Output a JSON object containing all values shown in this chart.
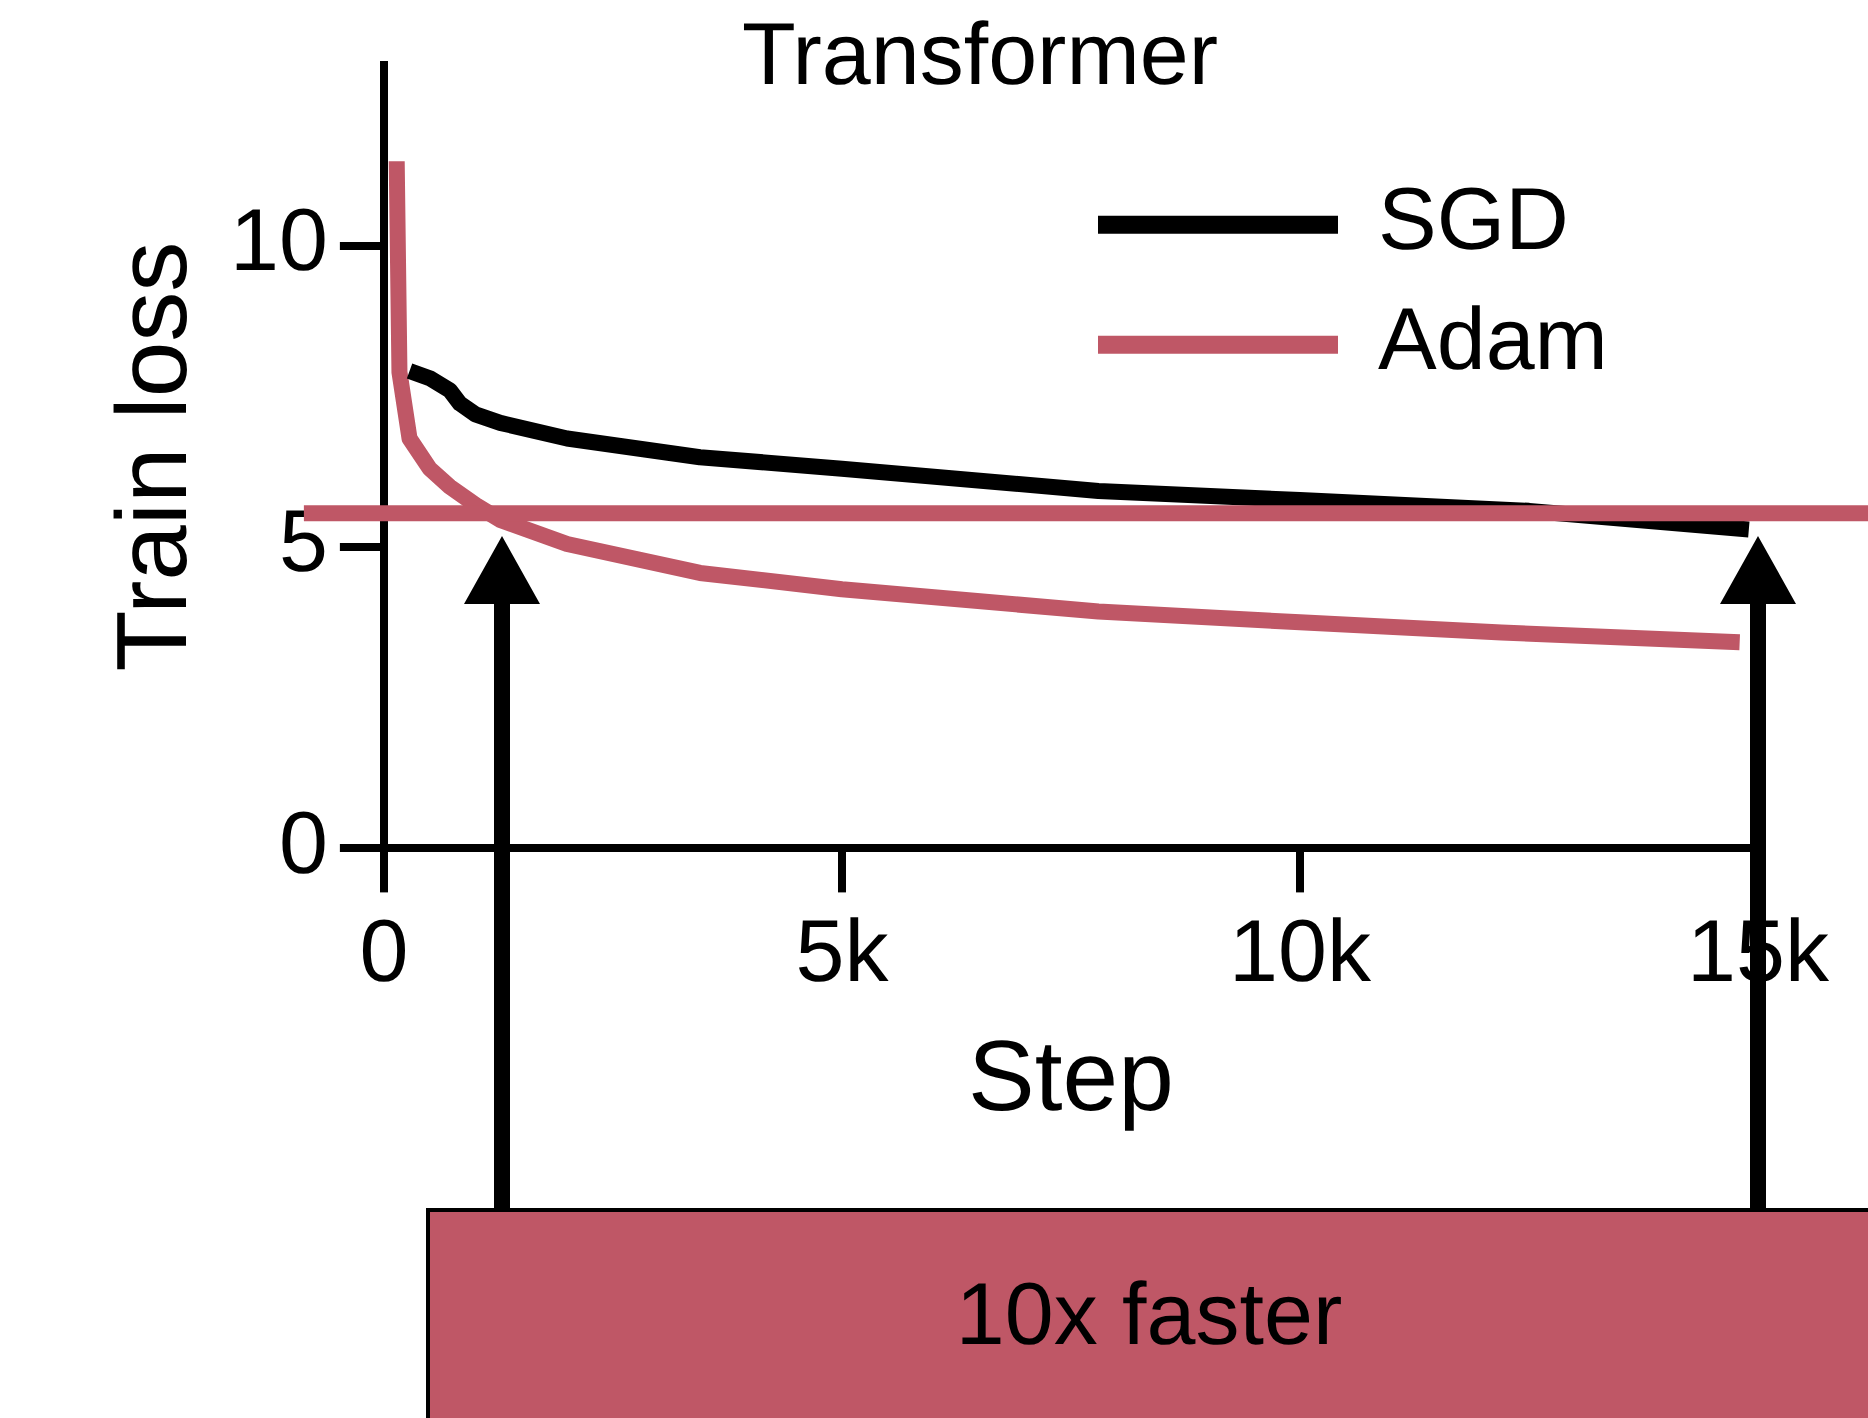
{
  "chart_data": {
    "type": "line",
    "title": "Transformer",
    "xlabel": "Step",
    "ylabel": "Train loss",
    "xlim": [
      0,
      15000
    ],
    "ylim": [
      0,
      13
    ],
    "xticks": [
      0,
      {
        "value": 5000,
        "label": "5k"
      },
      {
        "value": 10000,
        "label": "10k"
      },
      {
        "value": 15000,
        "label": "15k"
      }
    ],
    "yticks": [
      0,
      5,
      10
    ],
    "grid": false,
    "legend": "top right",
    "marker": "none",
    "line_style": "solid",
    "series": [
      {
        "name": "SGD",
        "color": "#000000",
        "x": [
          280,
          500,
          720,
          830,
          1000,
          1270,
          2000,
          3450,
          5000,
          7800,
          10000,
          12500,
          14900
        ],
        "values": [
          7.92,
          7.8,
          7.6,
          7.38,
          7.2,
          7.06,
          6.8,
          6.49,
          6.3,
          5.93,
          5.78,
          5.6,
          5.29
        ]
      },
      {
        "name": "Adam",
        "color": "#bf5766",
        "x": [
          140,
          170,
          280,
          500,
          720,
          1000,
          1270,
          2000,
          3450,
          5000,
          7800,
          10000,
          12200,
          14800
        ],
        "values": [
          11.4,
          7.9,
          6.8,
          6.3,
          6.0,
          5.7,
          5.45,
          5.05,
          4.57,
          4.3,
          3.93,
          3.75,
          3.58,
          3.42
        ]
      }
    ],
    "ref_lines": [
      {
        "axis": "y",
        "value": 5.56,
        "color": "#bf5766"
      }
    ],
    "annotations": [
      "10x faster"
    ]
  }
}
